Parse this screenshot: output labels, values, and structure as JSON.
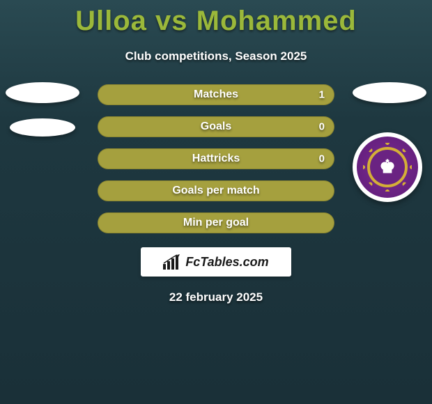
{
  "header": {
    "title": "Ulloa vs Mohammed",
    "subtitle": "Club competitions, Season 2025",
    "title_color": "#9bb83a"
  },
  "stats": {
    "bar_color": "#a5a03e",
    "bar_border": "#8a8530",
    "rows": [
      {
        "label": "Matches",
        "left": "",
        "right": "1",
        "left_pct": 50,
        "right_pct": 50,
        "single": false
      },
      {
        "label": "Goals",
        "left": "",
        "right": "0",
        "left_pct": 50,
        "right_pct": 50,
        "single": false
      },
      {
        "label": "Hattricks",
        "left": "",
        "right": "0",
        "left_pct": 50,
        "right_pct": 50,
        "single": false
      },
      {
        "label": "Goals per match",
        "left": "",
        "right": "",
        "left_pct": 100,
        "right_pct": 0,
        "single": true
      },
      {
        "label": "Min per goal",
        "left": "",
        "right": "",
        "left_pct": 50,
        "right_pct": 50,
        "single": false
      }
    ]
  },
  "players": {
    "left": {
      "placeholder_shapes": 2
    },
    "right": {
      "club": "Orlando City",
      "badge_bg": "#6a2382",
      "badge_accent": "#d4af37"
    }
  },
  "footer": {
    "brand": "FcTables.com",
    "date": "22 february 2025"
  },
  "colors": {
    "background_top": "#2a4a52",
    "background_bottom": "#1a3038",
    "text": "#ffffff"
  }
}
